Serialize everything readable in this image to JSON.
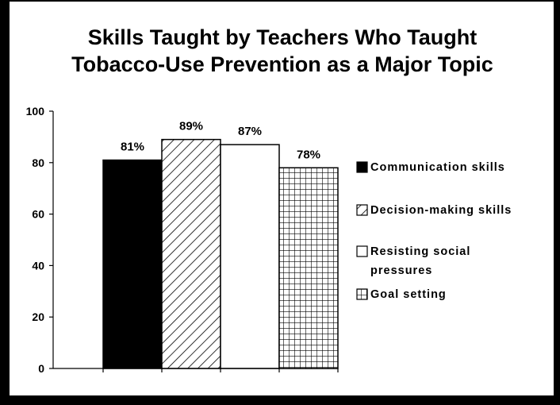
{
  "chart_data": {
    "type": "bar",
    "title_lines": [
      "Skills Taught by Teachers Who Taught",
      "Tobacco-Use Prevention as a Major Topic"
    ],
    "categories": [
      "Communication skills",
      "Decision-making skills",
      "Resisting social pressures",
      "Goal setting"
    ],
    "values": [
      81,
      89,
      87,
      78
    ],
    "data_labels": [
      "81%",
      "89%",
      "87%",
      "78%"
    ],
    "patterns": [
      "solid-black",
      "diagonal-hatch",
      "white",
      "grid"
    ],
    "ylim": [
      0,
      100
    ],
    "y_ticks": [
      0,
      20,
      40,
      60,
      80,
      100
    ],
    "grid": false,
    "legend_position": "right",
    "legend_labels": [
      [
        "Communication skills"
      ],
      [
        "Decision-making skills"
      ],
      [
        "Resisting social",
        "pressures"
      ],
      [
        "Goal setting"
      ]
    ]
  }
}
